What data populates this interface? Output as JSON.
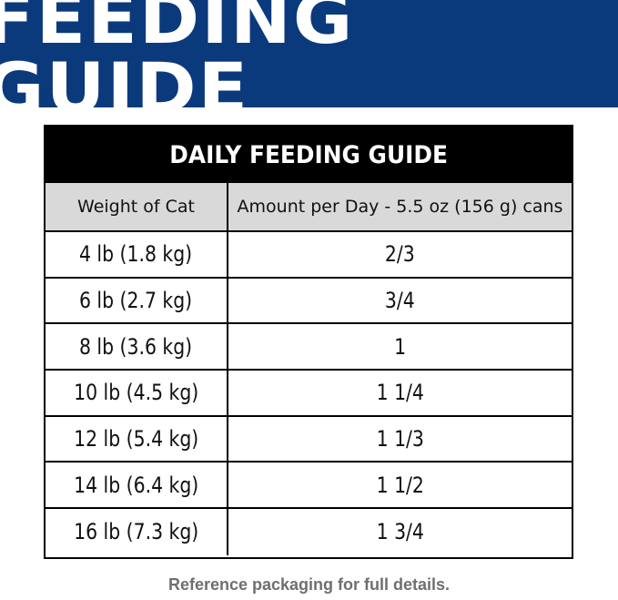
{
  "banner": {
    "title": "FEEDING GUIDE"
  },
  "table": {
    "title": "DAILY FEEDING GUIDE",
    "columns": [
      "Weight of Cat",
      "Amount per Day - 5.5 oz (156 g) cans"
    ],
    "rows": [
      [
        "4 lb (1.8 kg)",
        "2/3"
      ],
      [
        "6 lb (2.7 kg)",
        "3/4"
      ],
      [
        "8 lb (3.6 kg)",
        "1"
      ],
      [
        "10 lb (4.5 kg)",
        "1 1/4"
      ],
      [
        "12 lb (5.4 kg)",
        "1 1/3"
      ],
      [
        "14 lb (6.4 kg)",
        "1 1/2"
      ],
      [
        "16 lb (7.3 kg)",
        "1 3/4"
      ]
    ]
  },
  "footnote": "Reference packaging for full details.",
  "colors": {
    "banner_bg": "#0b3a7c",
    "header_bg": "#000000",
    "column_header_bg": "#d9d9d9",
    "footnote_text": "#6f6f6f"
  }
}
